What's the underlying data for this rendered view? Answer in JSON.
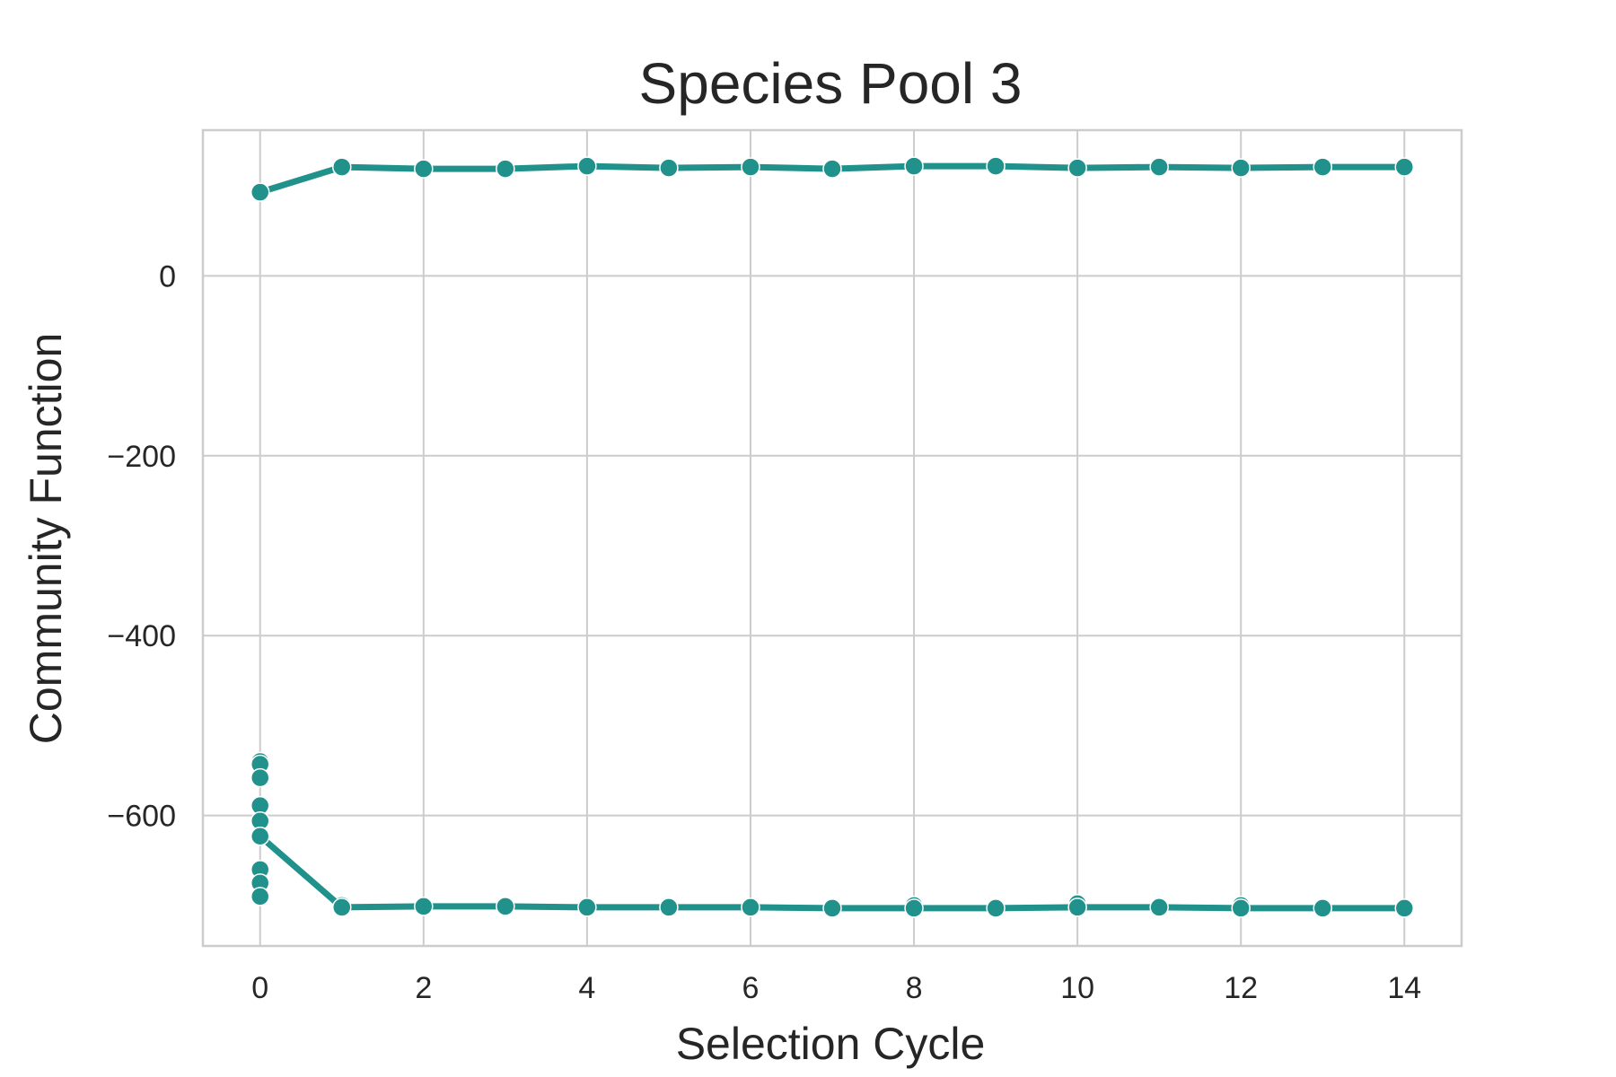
{
  "chart_data": {
    "type": "line",
    "title": "Species Pool 3",
    "xlabel": "Selection Cycle",
    "ylabel": "Community Function",
    "xlim": [
      -0.7,
      14.7
    ],
    "ylim": [
      -745,
      162
    ],
    "x_ticks": [
      0,
      2,
      4,
      6,
      8,
      10,
      12,
      14
    ],
    "x_tick_labels": [
      "0",
      "2",
      "4",
      "6",
      "8",
      "10",
      "12",
      "14"
    ],
    "y_ticks": [
      0,
      -200,
      -400,
      -600
    ],
    "y_tick_labels": [
      "0",
      "−200",
      "−400",
      "−600"
    ],
    "grid": true,
    "color": "#21918c",
    "series": [
      {
        "name": "upper",
        "x": [
          0,
          1,
          2,
          3,
          4,
          5,
          6,
          7,
          8,
          9,
          10,
          11,
          12,
          13,
          14
        ],
        "values": [
          93,
          121,
          119,
          119,
          122,
          120,
          121,
          119,
          122,
          122,
          120,
          121,
          120,
          121,
          121
        ]
      },
      {
        "name": "lower",
        "x": [
          0,
          1,
          2,
          3,
          4,
          5,
          6,
          7,
          8,
          9,
          10,
          11,
          12,
          13,
          14
        ],
        "values": [
          -623,
          -702,
          -701,
          -701,
          -702,
          -702,
          -702,
          -703,
          -703,
          -703,
          -702,
          -702,
          -703,
          -703,
          -703
        ]
      }
    ],
    "scatter_points": [
      {
        "x": 0,
        "y": -540
      },
      {
        "x": 0,
        "y": -543
      },
      {
        "x": 0,
        "y": -558
      },
      {
        "x": 0,
        "y": -589
      },
      {
        "x": 0,
        "y": -606
      },
      {
        "x": 0,
        "y": -623
      },
      {
        "x": 0,
        "y": -660
      },
      {
        "x": 0,
        "y": -675
      },
      {
        "x": 0,
        "y": -690
      },
      {
        "x": 1,
        "y": -700
      },
      {
        "x": 8,
        "y": -700
      },
      {
        "x": 10,
        "y": -698
      },
      {
        "x": 12,
        "y": -700
      }
    ]
  }
}
